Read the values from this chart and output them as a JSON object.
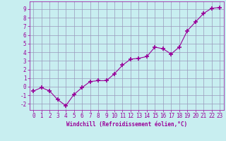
{
  "x": [
    0,
    1,
    2,
    3,
    4,
    5,
    6,
    7,
    8,
    9,
    10,
    11,
    12,
    13,
    14,
    15,
    16,
    17,
    18,
    19,
    20,
    21,
    22,
    23
  ],
  "y": [
    -0.5,
    -0.1,
    -0.5,
    -1.5,
    -2.2,
    -0.9,
    -0.1,
    0.6,
    0.7,
    0.7,
    1.5,
    2.5,
    3.2,
    3.3,
    3.5,
    4.6,
    4.4,
    3.8,
    4.6,
    6.5,
    7.5,
    8.5,
    9.1,
    9.2
  ],
  "line_color": "#990099",
  "marker": "+",
  "marker_size": 4,
  "marker_linewidth": 1.2,
  "background_color": "#c8eef0",
  "grid_color": "#9999bb",
  "xlabel": "Windchill (Refroidissement éolien,°C)",
  "xlabel_color": "#990099",
  "tick_color": "#990099",
  "ylabel_ticks": [
    -2,
    -1,
    0,
    1,
    2,
    3,
    4,
    5,
    6,
    7,
    8,
    9
  ],
  "xlabel_ticks": [
    0,
    1,
    2,
    3,
    4,
    5,
    6,
    7,
    8,
    9,
    10,
    11,
    12,
    13,
    14,
    15,
    16,
    17,
    18,
    19,
    20,
    21,
    22,
    23
  ],
  "ylim": [
    -2.7,
    9.9
  ],
  "xlim": [
    -0.5,
    23.5
  ],
  "line_width": 0.8,
  "tick_fontsize": 5.5,
  "xlabel_fontsize": 5.5
}
